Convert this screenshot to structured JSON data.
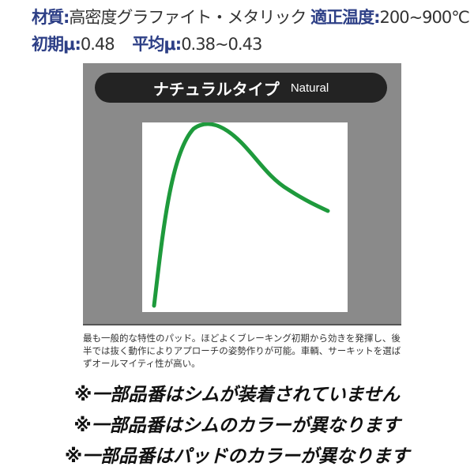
{
  "specs": {
    "material_label": "材質:",
    "material_value": "高密度グラファイト・メタリック",
    "temp_label": "適正温度:",
    "temp_value": "200~900℃",
    "initial_mu_label": "初期μ:",
    "initial_mu_value": "0.48",
    "average_mu_label": "平均μ:",
    "average_mu_value": "0.38~0.43"
  },
  "panel": {
    "title_jp": "ナチュラルタイプ",
    "title_en": "Natural",
    "curve_color": "#1e9a3c"
  },
  "description": "最も一般的な特性のパッド。ほどよくブレーキング初期から効きを発揮し、後半では抜く動作によりアプローチの姿勢作りが可能。車輌、サーキットを選ばずオールマイティ性が高い。",
  "notes": [
    "※一部品番はシムが装着されていません",
    "※一部品番はシムのカラーが異なります",
    "※一部品番はパッドのカラーが異なります"
  ]
}
